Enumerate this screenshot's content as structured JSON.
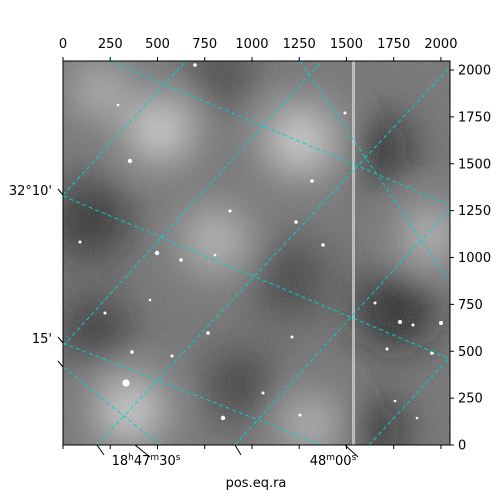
{
  "chart_data": {
    "type": "heatmap",
    "title": "",
    "xlabel": "pos.eq.ra",
    "ylabel": "",
    "pixel_xlim": [
      0,
      2048
    ],
    "pixel_ylim": [
      0,
      2048
    ],
    "pixel_x_ticks": [
      0,
      250,
      500,
      750,
      1000,
      1250,
      1500,
      1750,
      2000
    ],
    "pixel_y_ticks": [
      0,
      250,
      500,
      750,
      1000,
      1250,
      1500,
      1750,
      2000
    ],
    "ra_ticks": [
      {
        "h": "18",
        "m": "47",
        "s": "30",
        "value_s": 30
      },
      {
        "h": "",
        "m": "48",
        "s": "00",
        "value_s": 0
      }
    ],
    "dec_ticks": [
      {
        "label": "32°10'",
        "arcmin": 10
      },
      {
        "label": "15'",
        "arcmin": 15
      }
    ],
    "grid": true,
    "grid_color": "#00d0d0",
    "colormap": "gray",
    "image_background": "#6e6e6e"
  }
}
